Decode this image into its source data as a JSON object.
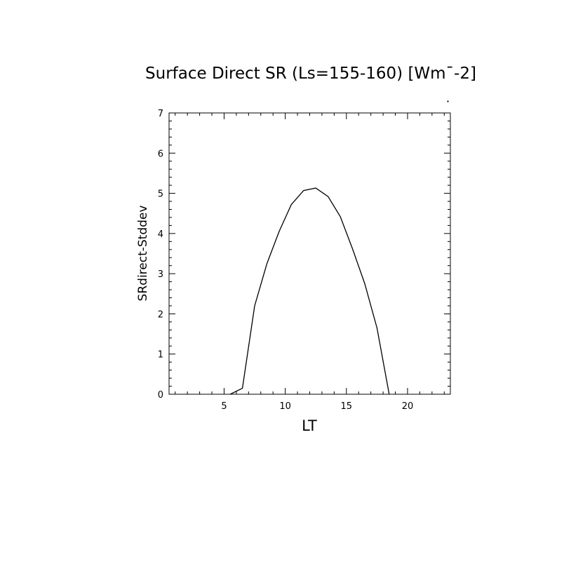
{
  "chart_data": {
    "type": "line",
    "title": "Surface Direct SR (Ls=155-160) [Wm¯-2]",
    "xlabel": "LT",
    "ylabel": "SRdirect-Stddev",
    "xlim": [
      0.5,
      23.5
    ],
    "ylim": [
      0,
      7
    ],
    "xticks": [
      5,
      10,
      15,
      20
    ],
    "yticks": [
      0,
      1,
      2,
      3,
      4,
      5,
      6,
      7
    ],
    "grid": false,
    "legend": "none",
    "series": [
      {
        "color": "#000000",
        "x": [
          5.5,
          6.5,
          7.5,
          8.5,
          9.5,
          10.5,
          11.5,
          12.5,
          13.5,
          14.5,
          15.5,
          16.5,
          17.5,
          18.5
        ],
        "y": [
          0.0,
          0.15,
          2.2,
          3.25,
          4.05,
          4.72,
          5.07,
          5.13,
          4.92,
          4.42,
          3.62,
          2.75,
          1.65,
          0.0
        ]
      }
    ]
  }
}
